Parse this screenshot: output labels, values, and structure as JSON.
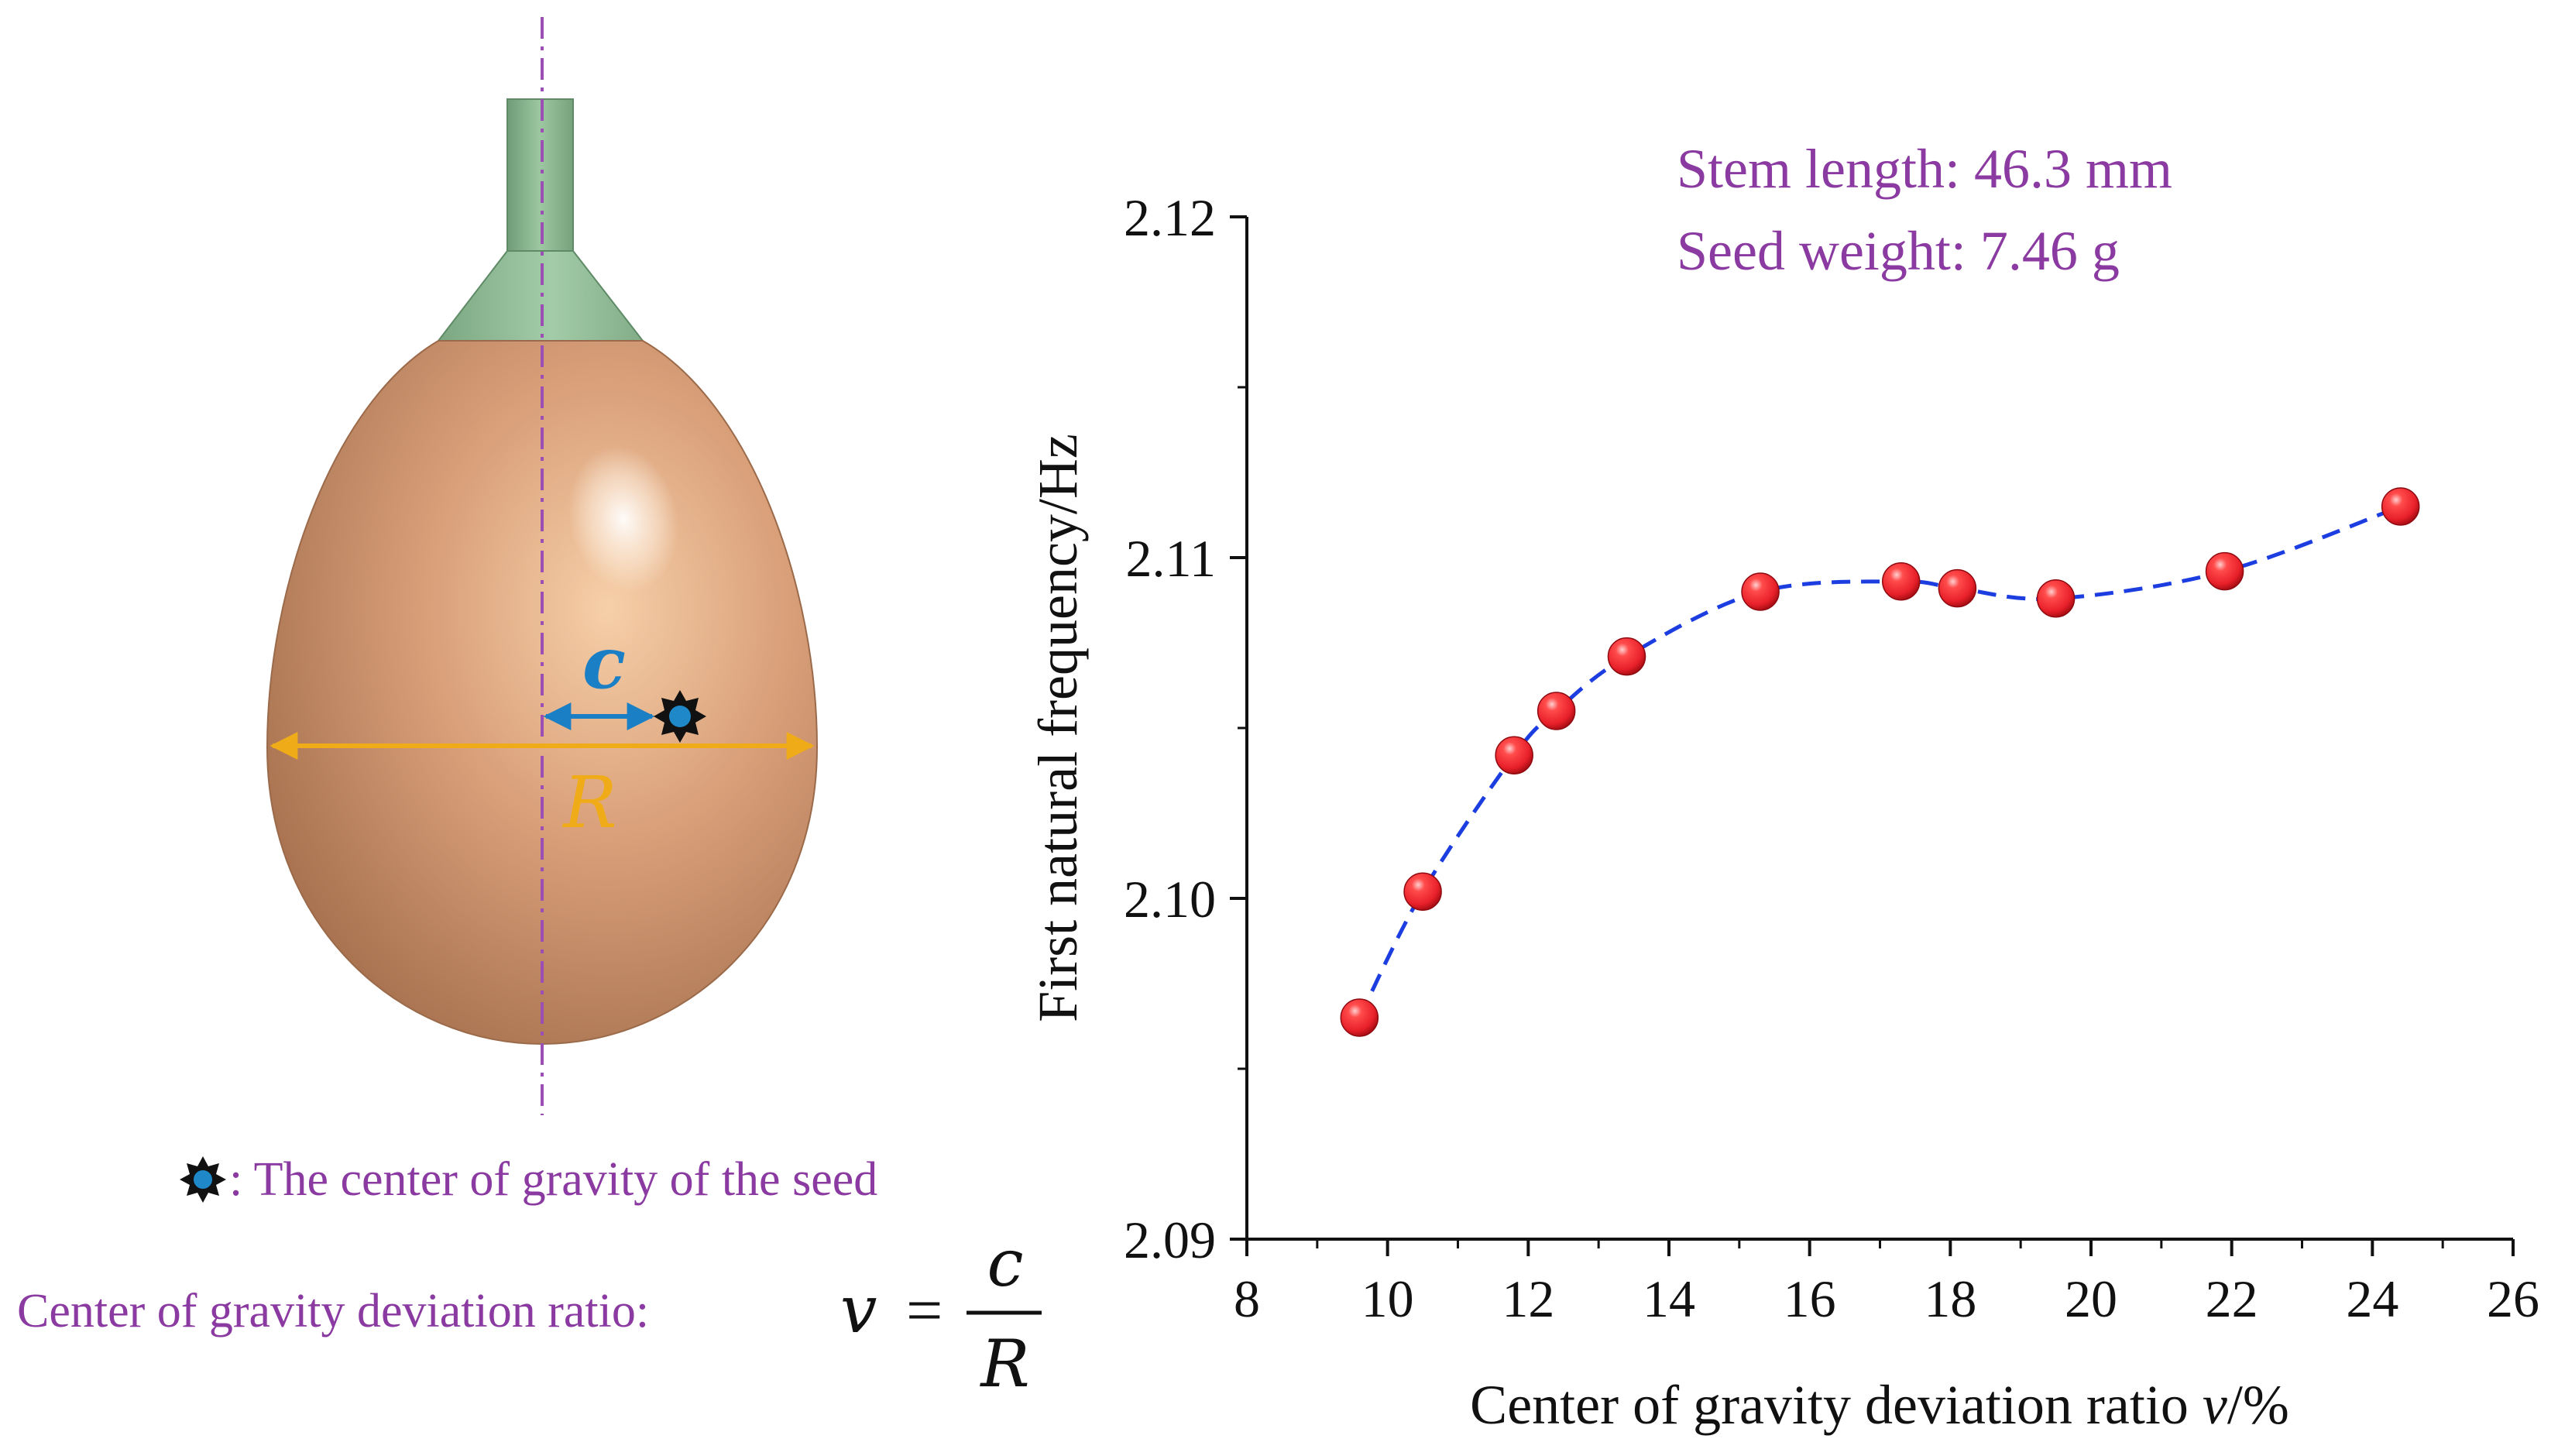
{
  "illustration": {
    "label_c": "c",
    "label_R": "R",
    "legend_text": ": The center of gravity of the seed",
    "ratio_label": "Center of gravity deviation ratio:",
    "formula": {
      "lhs": "v",
      "equals": "=",
      "numerator": "c",
      "denominator": "R"
    },
    "colors": {
      "stem": "#8fb894",
      "fruit": "#d9a07a",
      "axis_line": "#9b4fb5",
      "c_arrow": "#1a7fc4",
      "R_arrow": "#f0ac18",
      "purple_text": "#8a3aa0",
      "gravity_marker": "#1e88c8"
    }
  },
  "chart_data": {
    "type": "scatter",
    "title": "",
    "annotations": [
      "Stem length: 46.3 mm",
      "Seed weight: 7.46 g"
    ],
    "xlabel": "Center of gravity deviation ratio v/%",
    "xlabel_parts": {
      "main": "Center of gravity deviation ratio ",
      "var": "v",
      "unit": "/%"
    },
    "ylabel": "First natural frequency/Hz",
    "xlim": [
      8,
      26
    ],
    "ylim": [
      2.09,
      2.12
    ],
    "x_ticks": [
      8,
      10,
      12,
      14,
      16,
      18,
      20,
      22,
      24,
      26
    ],
    "x_tick_labels": [
      "8",
      "10",
      "12",
      "14",
      "16",
      "18",
      "20",
      "22",
      "24",
      "26"
    ],
    "y_ticks": [
      2.09,
      2.1,
      2.11,
      2.12
    ],
    "y_tick_labels": [
      "2.09",
      "2.10",
      "2.11",
      "2.12"
    ],
    "grid": false,
    "series": [
      {
        "name": "First natural frequency",
        "marker": "sphere",
        "marker_color": "#e8202a",
        "line_style": "dashed",
        "line_color": "#1c3de0",
        "x": [
          9.6,
          10.5,
          11.8,
          12.4,
          13.4,
          15.3,
          17.3,
          18.1,
          19.5,
          21.9,
          24.4
        ],
        "y": [
          2.0965,
          2.1002,
          2.1042,
          2.1055,
          2.1071,
          2.109,
          2.1093,
          2.1091,
          2.1088,
          2.1096,
          2.1115
        ]
      }
    ]
  }
}
